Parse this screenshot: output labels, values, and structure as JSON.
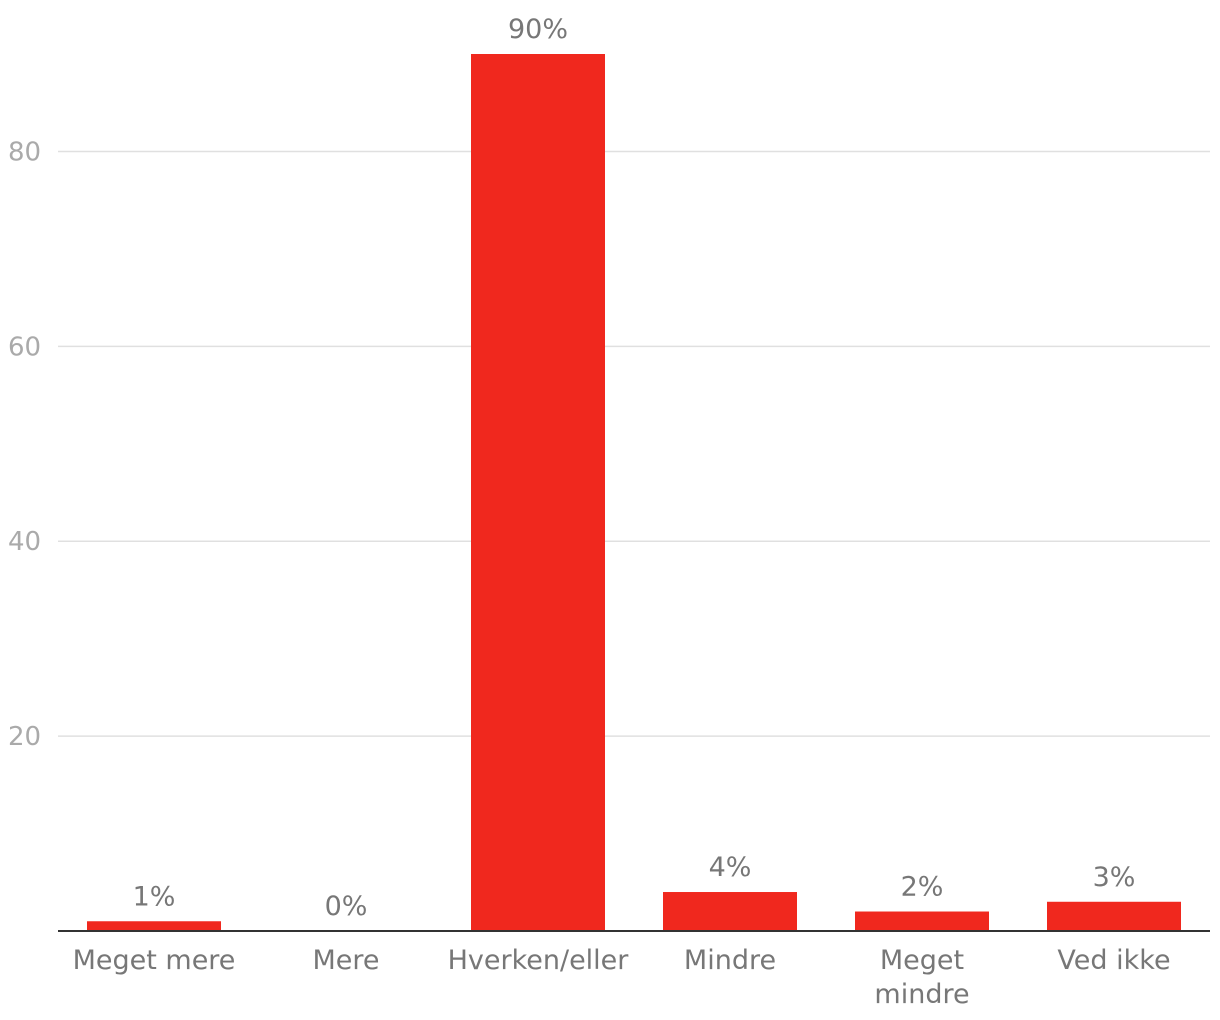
{
  "chart_data": {
    "type": "bar",
    "categories": [
      "Meget mere",
      "Mere",
      "Hverken/eller",
      "Mindre",
      "Meget mindre",
      "Ved ikke"
    ],
    "category_lines": [
      [
        "Meget mere"
      ],
      [
        "Mere"
      ],
      [
        "Hverken/eller"
      ],
      [
        "Mindre"
      ],
      [
        "Meget",
        "mindre"
      ],
      [
        "Ved ikke"
      ]
    ],
    "values": [
      1,
      0,
      90,
      4,
      2,
      3
    ],
    "data_labels": [
      "1%",
      "0%",
      "90%",
      "4%",
      "2%",
      "3%"
    ],
    "yticks": [
      20,
      40,
      60,
      80
    ],
    "ylim": [
      0,
      90
    ],
    "grid": true,
    "bar_color": "#f0281e"
  }
}
